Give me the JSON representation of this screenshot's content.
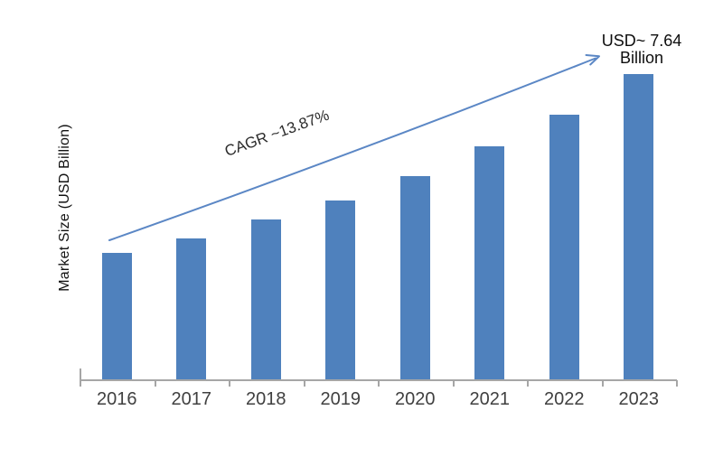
{
  "chart_data": {
    "type": "bar",
    "title": "",
    "categories": [
      "2016",
      "2017",
      "2018",
      "2019",
      "2020",
      "2021",
      "2022",
      "2023"
    ],
    "values": [
      3.16,
      3.54,
      4.0,
      4.49,
      5.1,
      5.83,
      6.62,
      7.64
    ],
    "series_name": "Market Size",
    "unit": "USD Billion",
    "xlabel": "",
    "ylabel": "Market Size (USD Billion)",
    "ylim": [
      0,
      8.15
    ],
    "grid": false,
    "legend": "none",
    "y_tick_labels_visible": false,
    "bar_color": "#4f81bd",
    "arrow_color": "#5b87c5",
    "axis_color": "#a6a6a6",
    "x_label_color": "#404040",
    "annotations": [
      {
        "type": "trend-arrow-label",
        "text": "CAGR ~13.87%"
      },
      {
        "type": "endpoint-label",
        "text": "USD~ 7.64 Billion"
      }
    ]
  },
  "labels": {
    "y_axis_title": "Market Size (USD Billion)",
    "cagr": "CAGR ~13.87%",
    "endpoint_line1": "USD~ 7.64",
    "endpoint_line2": "Billion"
  }
}
